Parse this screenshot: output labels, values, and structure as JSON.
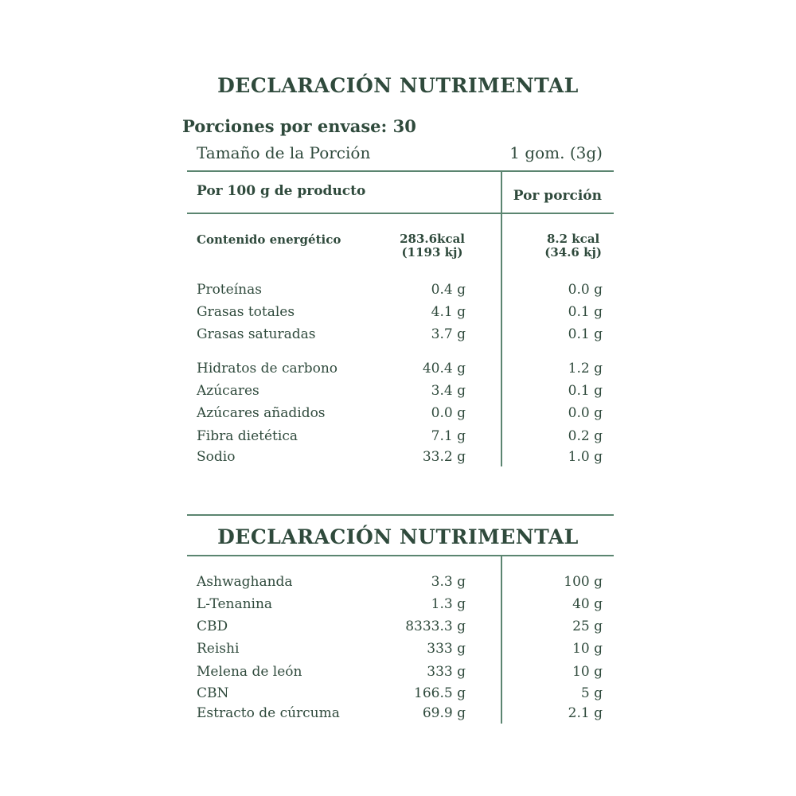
{
  "title": "DECLARACIÓN NUTRIMENTAL",
  "servings": "Porciones por envase: 30",
  "serving_size": {
    "label": "Tamaño de la Porción",
    "value": "1 gom. (3g)"
  },
  "headers": {
    "per100": "Por 100 g de producto",
    "per_serving": "Por porción"
  },
  "energy": {
    "label": "Contenido energético",
    "per100_kcal": "283.6kcal",
    "per100_kj": "(1193 kj)",
    "serving_kcal": "8.2 kcal",
    "serving_kj": "(34.6 kj)"
  },
  "nutrients": [
    {
      "label": "Proteínas",
      "per100": "0.4 g",
      "serving": "0.0 g"
    },
    {
      "label": "Grasas totales",
      "per100": "4.1 g",
      "serving": "0.1 g"
    },
    {
      "label": "Grasas saturadas",
      "per100": "3.7 g",
      "serving": "0.1 g"
    },
    {
      "label": "Hidratos de carbono",
      "per100": "40.4 g",
      "serving": "1.2 g"
    },
    {
      "label": "Azúcares",
      "per100": "3.4 g",
      "serving": "0.1 g"
    },
    {
      "label": "Azúcares añadidos",
      "per100": "0.0 g",
      "serving": "0.0 g"
    },
    {
      "label": "Fibra dietética",
      "per100": "7.1 g",
      "serving": "0.2 g"
    },
    {
      "label": "Sodio",
      "per100": "33.2 g",
      "serving": "1.0 g"
    }
  ],
  "title2": "DECLARACIÓN NUTRIMENTAL",
  "ingredients": [
    {
      "label": "Ashwaghanda",
      "per100": "3.3 g",
      "serving": "100 g"
    },
    {
      "label": "L-Tenanina",
      "per100": "1.3 g",
      "serving": "40 g"
    },
    {
      "label": "CBD",
      "per100": "8333.3 g",
      "serving": "25 g"
    },
    {
      "label": "Reishi",
      "per100": "333 g",
      "serving": "10 g"
    },
    {
      "label": "Melena de león",
      "per100": "333 g",
      "serving": "10 g"
    },
    {
      "label": "CBN",
      "per100": "166.5 g",
      "serving": "5 g"
    },
    {
      "label": "Estracto de cúrcuma",
      "per100": "69.9 g",
      "serving": "2.1 g"
    }
  ]
}
